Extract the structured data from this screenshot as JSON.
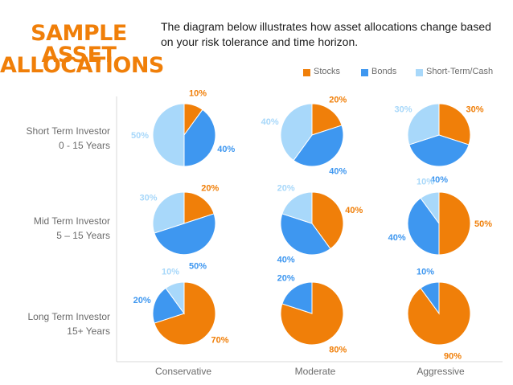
{
  "title": {
    "line1": "SAMPLE ASSET",
    "line2": "ALLOCATIONS"
  },
  "subtitle": "The diagram below illustrates how asset allocations change based on your risk tolerance and time horizon.",
  "colors": {
    "stocks": "#f07f09",
    "bonds": "#3e97f0",
    "short_term": "#a8d8fa"
  },
  "legend": [
    {
      "label": "Stocks",
      "color": "#f07f09"
    },
    {
      "label": "Bonds",
      "color": "#3e97f0"
    },
    {
      "label": "Short-Term/Cash",
      "color": "#a8d8fa"
    }
  ],
  "rows": [
    {
      "line1": "Short Term Investor",
      "line2": "0 - 15 Years"
    },
    {
      "line1": "Mid Term Investor",
      "line2": "5 – 15 Years"
    },
    {
      "line1": "Long Term Investor",
      "line2": "15+ Years"
    }
  ],
  "columns": [
    "Conservative",
    "Moderate",
    "Aggressive"
  ],
  "chart_data": {
    "type": "pie",
    "grid": "3x3",
    "series_names": [
      "Stocks",
      "Bonds",
      "Short-Term/Cash"
    ],
    "pies": [
      {
        "row": "Short Term Investor",
        "column": "Conservative",
        "values": [
          10,
          40,
          50
        ],
        "labels": [
          "10%",
          "40%",
          "50%"
        ]
      },
      {
        "row": "Short Term Investor",
        "column": "Moderate",
        "values": [
          20,
          40,
          40
        ],
        "labels": [
          "20%",
          "40%",
          "40%"
        ]
      },
      {
        "row": "Short Term Investor",
        "column": "Aggressive",
        "values": [
          30,
          40,
          30
        ],
        "labels": [
          "30%",
          "40%",
          "30%"
        ]
      },
      {
        "row": "Mid Term Investor",
        "column": "Conservative",
        "values": [
          20,
          50,
          30
        ],
        "labels": [
          "20%",
          "50%",
          "30%"
        ]
      },
      {
        "row": "Mid Term Investor",
        "column": "Moderate",
        "values": [
          40,
          40,
          20
        ],
        "labels": [
          "40%",
          "40%",
          "20%"
        ]
      },
      {
        "row": "Mid Term Investor",
        "column": "Aggressive",
        "values": [
          50,
          40,
          10
        ],
        "labels": [
          "50%",
          "40%",
          "10%"
        ]
      },
      {
        "row": "Long Term Investor",
        "column": "Conservative",
        "values": [
          70,
          20,
          10
        ],
        "labels": [
          "70%",
          "20%",
          "10%"
        ]
      },
      {
        "row": "Long Term Investor",
        "column": "Moderate",
        "values": [
          80,
          20,
          0
        ],
        "labels": [
          "80%",
          "20%",
          ""
        ]
      },
      {
        "row": "Long Term Investor",
        "column": "Aggressive",
        "values": [
          90,
          10,
          0
        ],
        "labels": [
          "90%",
          "10%",
          ""
        ]
      }
    ]
  }
}
